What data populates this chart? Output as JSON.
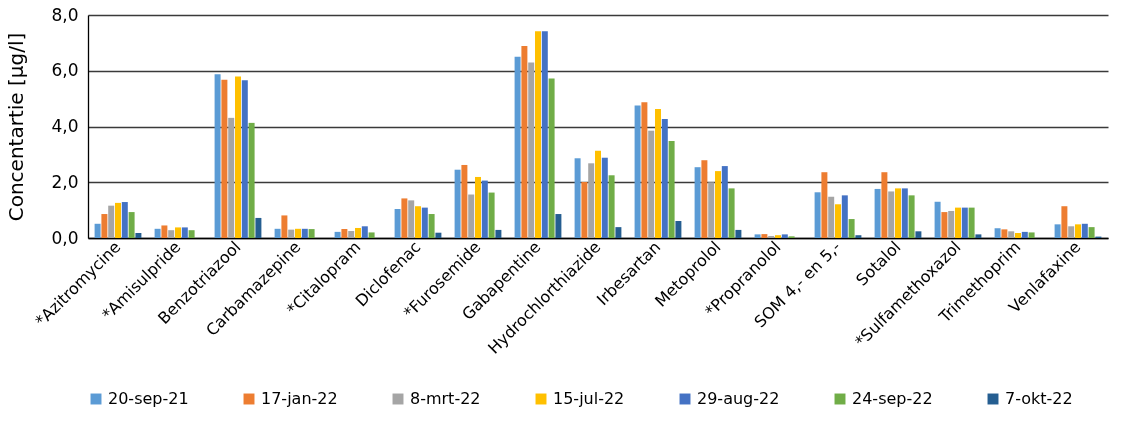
{
  "chart_data": {
    "type": "bar",
    "ylabel": "Concentartie [µg/l]",
    "categories": [
      "*Azitromycine",
      "*Amisulpride",
      "Benzotriazool",
      "Carbamazepine",
      "*Citalopram",
      "Diclofenac",
      "*Furosemide",
      "Gabapentine",
      "Hydrochlorthiazide",
      "Irbesartan",
      "Metoprolol",
      "*Propranolol",
      "SOM 4,- en 5,-",
      "Sotalol",
      "*Sulfamethoxazol",
      "Trimethoprim",
      "Venlafaxine"
    ],
    "series": [
      {
        "name": "20-sep-21",
        "color": "#5b9bd5",
        "values": [
          0.51,
          0.33,
          5.87,
          0.33,
          0.22,
          1.04,
          2.45,
          6.5,
          2.86,
          4.75,
          2.54,
          0.13,
          1.64,
          1.76,
          1.3,
          0.35,
          0.49
        ]
      },
      {
        "name": "17-jan-22",
        "color": "#ed7d31",
        "values": [
          0.86,
          0.45,
          5.68,
          0.81,
          0.32,
          1.42,
          2.62,
          6.89,
          2.01,
          4.87,
          2.79,
          0.14,
          2.36,
          2.36,
          0.93,
          0.31,
          1.14
        ]
      },
      {
        "name": "8-mrt-22",
        "color": "#a5a5a5",
        "values": [
          1.16,
          0.28,
          4.31,
          0.3,
          0.25,
          1.35,
          1.56,
          6.3,
          2.68,
          3.85,
          2.0,
          0.07,
          1.48,
          1.67,
          0.97,
          0.24,
          0.42
        ]
      },
      {
        "name": "15-jul-22",
        "color": "#ffc000",
        "values": [
          1.26,
          0.38,
          5.79,
          0.33,
          0.36,
          1.14,
          2.19,
          7.42,
          3.13,
          4.63,
          2.4,
          0.1,
          1.21,
          1.78,
          1.09,
          0.18,
          0.49
        ]
      },
      {
        "name": "29-aug-22",
        "color": "#4472c4",
        "values": [
          1.29,
          0.38,
          5.66,
          0.33,
          0.42,
          1.09,
          2.06,
          7.42,
          2.88,
          4.27,
          2.58,
          0.13,
          1.53,
          1.78,
          1.09,
          0.22,
          0.51
        ]
      },
      {
        "name": "24-sep-22",
        "color": "#70ad47",
        "values": [
          0.93,
          0.28,
          4.13,
          0.32,
          0.2,
          0.86,
          1.63,
          5.72,
          2.25,
          3.48,
          1.78,
          0.06,
          0.68,
          1.53,
          1.09,
          0.2,
          0.39
        ]
      },
      {
        "name": "7-okt-22",
        "color": "#255e91",
        "values": [
          0.18,
          null,
          0.72,
          null,
          null,
          0.19,
          0.29,
          0.86,
          0.39,
          0.61,
          0.29,
          null,
          0.1,
          0.24,
          0.13,
          null,
          0.05
        ]
      }
    ],
    "ylim": [
      0,
      8
    ],
    "yticks": [
      {
        "value": 0,
        "label": "0,0"
      },
      {
        "value": 2,
        "label": "2,0"
      },
      {
        "value": 4,
        "label": "4,0"
      },
      {
        "value": 6,
        "label": "6,0"
      },
      {
        "value": 8,
        "label": "8,0"
      }
    ],
    "grid": "y",
    "legend": "bottom"
  }
}
